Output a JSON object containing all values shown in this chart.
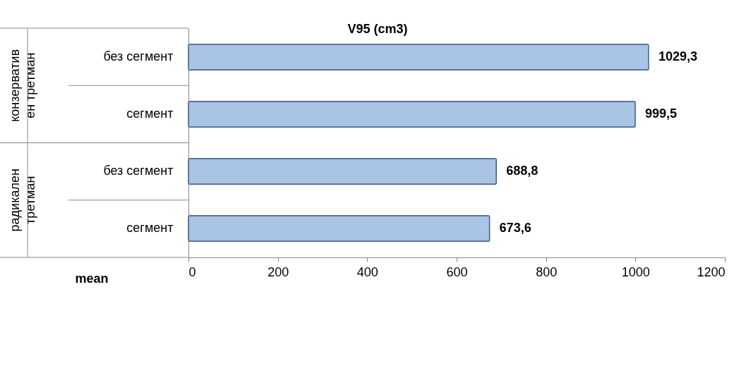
{
  "chart_data": {
    "type": "bar",
    "orientation": "horizontal",
    "title": "V95 (cm3)",
    "xlabel": "mean",
    "categories": [
      "без сегмент",
      "сегмент",
      "без сегмент",
      "сегмент"
    ],
    "values": [
      1029.3,
      999.5,
      688.8,
      673.6
    ],
    "value_labels": [
      "1029,3",
      "999,5",
      "688,8",
      "673,6"
    ],
    "color": "#a9c4e4",
    "annotations": [
      "конзерватив ен третман",
      "радикален третман"
    ],
    "xlim": [
      0,
      1200
    ],
    "xticks": [
      0,
      200,
      400,
      600,
      800,
      1000,
      1200
    ],
    "grid": false
  }
}
